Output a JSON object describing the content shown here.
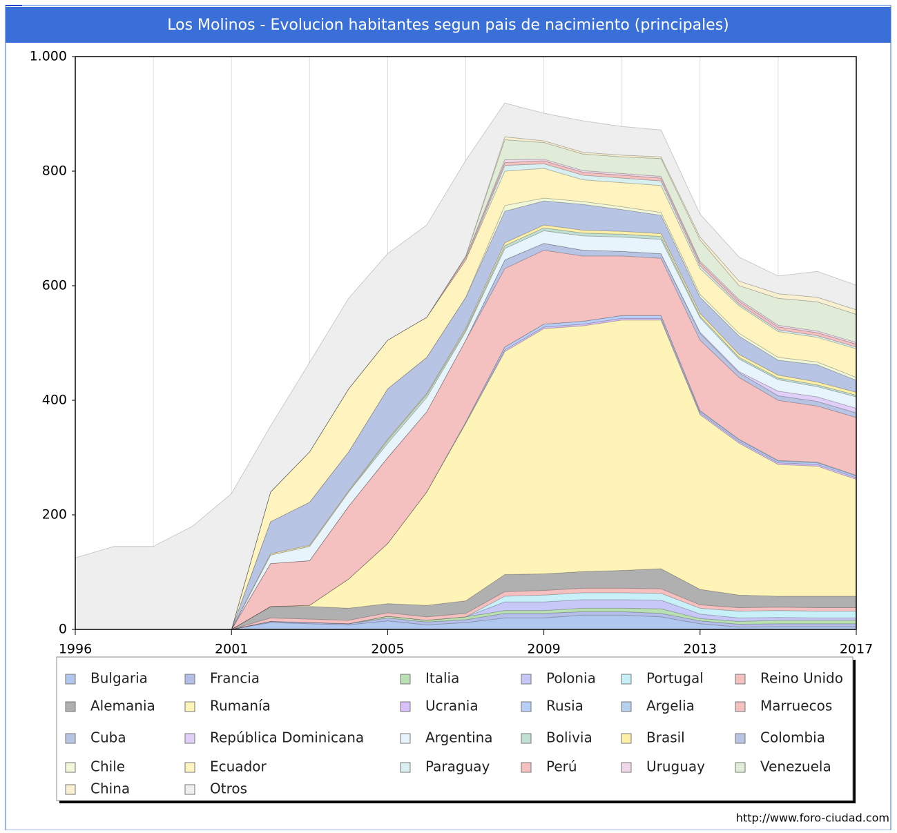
{
  "chart_data": {
    "type": "stacked_area",
    "title": "Los Molinos - Evolucion habitantes segun pais de nacimiento (principales)",
    "source": "http://www.foro-ciudad.com",
    "categories": [
      "1996",
      null,
      null,
      null,
      "2001",
      null,
      null,
      null,
      "2005",
      null,
      null,
      null,
      "2009",
      null,
      null,
      null,
      "2013",
      null,
      null,
      null,
      "2017"
    ],
    "ylim": [
      0,
      1000
    ],
    "yticks": [
      0,
      200,
      400,
      600,
      800,
      {
        "value": 1000,
        "label": "1.000"
      }
    ],
    "series": [
      {
        "name": "Bulgaria",
        "color": "#b0c8f0",
        "values": [
          0,
          0,
          0,
          0,
          0,
          12,
          10,
          8,
          15,
          8,
          12,
          20,
          20,
          25,
          25,
          22,
          10,
          4,
          5,
          5,
          5
        ]
      },
      {
        "name": "Francia",
        "color": "#b4bee8",
        "values": [
          0,
          0,
          0,
          0,
          0,
          2,
          2,
          2,
          5,
          5,
          5,
          8,
          8,
          6,
          6,
          6,
          5,
          5,
          5,
          5,
          5
        ]
      },
      {
        "name": "Italia",
        "color": "#b8e0b0",
        "values": [
          0,
          0,
          0,
          0,
          0,
          0,
          0,
          0,
          3,
          3,
          5,
          5,
          5,
          6,
          6,
          8,
          4,
          5,
          6,
          6,
          6
        ]
      },
      {
        "name": "Polonia",
        "color": "#c8c8f8",
        "values": [
          0,
          0,
          0,
          0,
          0,
          0,
          0,
          0,
          0,
          0,
          0,
          15,
          15,
          15,
          15,
          15,
          8,
          6,
          5,
          4,
          4
        ]
      },
      {
        "name": "Portugal",
        "color": "#c8f0f8",
        "values": [
          0,
          0,
          0,
          0,
          0,
          0,
          0,
          0,
          0,
          0,
          0,
          10,
          12,
          12,
          12,
          12,
          10,
          12,
          12,
          12,
          12
        ]
      },
      {
        "name": "Reino Unido",
        "color": "#f4c0c0",
        "values": [
          0,
          0,
          0,
          0,
          0,
          6,
          6,
          6,
          6,
          6,
          6,
          8,
          8,
          8,
          8,
          8,
          6,
          6,
          6,
          6,
          6
        ]
      },
      {
        "name": "Alemania",
        "color": "#b0b0b0",
        "values": [
          0,
          0,
          0,
          0,
          0,
          20,
          22,
          21,
          16,
          20,
          22,
          30,
          29,
          29,
          31,
          35,
          27,
          22,
          19,
          20,
          20
        ]
      },
      {
        "name": "Rumanía",
        "color": "#fff4b8",
        "values": [
          0,
          0,
          0,
          0,
          0,
          0,
          2,
          51,
          105,
          198,
          310,
          389,
          428,
          429,
          437,
          434,
          305,
          265,
          230,
          227,
          204
        ]
      },
      {
        "name": "Ucrania",
        "color": "#d8c0f8",
        "values": [
          0,
          0,
          0,
          0,
          0,
          0,
          0,
          0,
          0,
          0,
          0,
          3,
          3,
          3,
          3,
          3,
          3,
          3,
          3,
          3,
          3
        ]
      },
      {
        "name": "Rusia",
        "color": "#b8d0f8",
        "values": [
          0,
          0,
          0,
          0,
          0,
          0,
          0,
          0,
          0,
          0,
          2,
          5,
          5,
          5,
          5,
          5,
          3,
          3,
          3,
          3,
          3
        ]
      },
      {
        "name": "Argelia",
        "color": "#b8d0f0",
        "values": [
          0,
          0,
          0,
          0,
          0,
          0,
          0,
          0,
          0,
          0,
          0,
          0,
          0,
          0,
          0,
          0,
          1,
          1,
          1,
          1,
          1
        ]
      },
      {
        "name": "Marruecos",
        "color": "#f4c0c0",
        "values": [
          0,
          0,
          0,
          0,
          0,
          75,
          78,
          127,
          150,
          140,
          143,
          137,
          129,
          114,
          104,
          100,
          123,
          108,
          105,
          98,
          101
        ]
      },
      {
        "name": "Cuba",
        "color": "#b8c4e4",
        "values": [
          0,
          0,
          0,
          0,
          0,
          0,
          0,
          0,
          0,
          0,
          0,
          15,
          12,
          10,
          8,
          8,
          12,
          8,
          8,
          8,
          8
        ]
      },
      {
        "name": "República Dominicana",
        "color": "#e0d0f8",
        "values": [
          0,
          0,
          0,
          0,
          0,
          0,
          0,
          0,
          0,
          0,
          0,
          0,
          0,
          0,
          0,
          0,
          2,
          2,
          8,
          8,
          8
        ]
      },
      {
        "name": "Argentina",
        "color": "#e8f4fc",
        "values": [
          0,
          0,
          0,
          0,
          0,
          15,
          25,
          25,
          25,
          25,
          15,
          20,
          22,
          25,
          25,
          25,
          25,
          22,
          20,
          18,
          20
        ]
      },
      {
        "name": "Bolivia",
        "color": "#c0e0d4",
        "values": [
          0,
          0,
          0,
          0,
          0,
          0,
          0,
          0,
          5,
          5,
          3,
          5,
          5,
          5,
          5,
          5,
          3,
          3,
          3,
          3,
          3
        ]
      },
      {
        "name": "Brasil",
        "color": "#fff0a8",
        "values": [
          0,
          0,
          0,
          0,
          0,
          2,
          2,
          2,
          2,
          2,
          3,
          5,
          5,
          5,
          5,
          5,
          5,
          5,
          5,
          5,
          5
        ]
      },
      {
        "name": "Colombia",
        "color": "#b8c4e4",
        "values": [
          0,
          0,
          0,
          0,
          0,
          56,
          75,
          68,
          88,
          63,
          54,
          55,
          42,
          45,
          38,
          32,
          28,
          32,
          26,
          30,
          21
        ]
      },
      {
        "name": "Chile",
        "color": "#f0f8d8",
        "values": [
          0,
          0,
          0,
          0,
          0,
          0,
          0,
          0,
          0,
          0,
          0,
          10,
          5,
          5,
          5,
          5,
          5,
          5,
          5,
          5,
          5
        ]
      },
      {
        "name": "Ecuador",
        "color": "#fff4c0",
        "values": [
          0,
          0,
          0,
          0,
          0,
          52,
          88,
          110,
          85,
          70,
          65,
          60,
          52,
          38,
          42,
          47,
          45,
          48,
          45,
          43,
          50
        ]
      },
      {
        "name": "Paraguay",
        "color": "#d8f0f0",
        "values": [
          0,
          0,
          0,
          0,
          0,
          0,
          0,
          0,
          0,
          0,
          0,
          10,
          8,
          8,
          8,
          8,
          5,
          3,
          3,
          3,
          3
        ]
      },
      {
        "name": "Perú",
        "color": "#f4c0c0",
        "values": [
          0,
          0,
          0,
          0,
          0,
          0,
          0,
          0,
          0,
          0,
          5,
          5,
          5,
          5,
          5,
          5,
          5,
          5,
          5,
          5,
          5
        ]
      },
      {
        "name": "Uruguay",
        "color": "#f0d8e8",
        "values": [
          0,
          0,
          0,
          0,
          0,
          0,
          0,
          0,
          0,
          0,
          0,
          5,
          3,
          3,
          3,
          3,
          3,
          3,
          3,
          3,
          3
        ]
      },
      {
        "name": "Venezuela",
        "color": "#e0ecd8",
        "values": [
          0,
          0,
          0,
          0,
          0,
          0,
          0,
          0,
          0,
          0,
          2,
          35,
          29,
          29,
          29,
          31,
          37,
          24,
          47,
          51,
          49
        ]
      },
      {
        "name": "China",
        "color": "#f8f0d0",
        "values": [
          0,
          0,
          0,
          0,
          0,
          0,
          0,
          0,
          0,
          0,
          0,
          5,
          3,
          3,
          3,
          3,
          5,
          8,
          8,
          8,
          8
        ]
      },
      {
        "name": "Otros",
        "color": "#eeeeee",
        "values": [
          125,
          145,
          145,
          180,
          237,
          115,
          156,
          158,
          151,
          161,
          167,
          59,
          48,
          55,
          50,
          47,
          40,
          42,
          31,
          45,
          43
        ]
      }
    ]
  }
}
